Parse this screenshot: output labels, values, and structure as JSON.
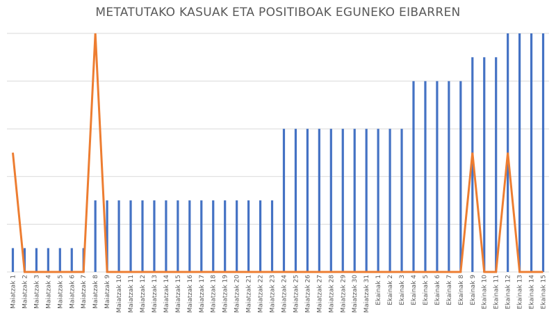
{
  "chart_data": {
    "type": "bar",
    "title": "METATUTAKO KASUAK ETA POSITIBOAK EGUNEKO EIBARREN",
    "xlabel": "",
    "ylabel": "",
    "ylim": [
      0,
      10
    ],
    "grid": true,
    "categories": [
      "Maiatzak 1",
      "Maiatzak 2",
      "Maiatzak 3",
      "Maiatzak 4",
      "Maiatzak 5",
      "Maiatzak 6",
      "Maiatzak 7",
      "Maiatzak 8",
      "Maiatzak 9",
      "Maiatzak 10",
      "Maiatzak 11",
      "Maiatzak 12",
      "Maiatzak 13",
      "Maiatzak 14",
      "Maiatzak 15",
      "Maiatzak 16",
      "Maiatzak 17",
      "Maiatzak 18",
      "Maiatzak 19",
      "Maiatzak 20",
      "Maiatzak 21",
      "Maiatzak 22",
      "Maiatzak 23",
      "Maiatzak 24",
      "Maiatzak 25",
      "Maiatzak 26",
      "Maiatzak 27",
      "Maiatzak 28",
      "Maiatzak 29",
      "Maiatzak 30",
      "Maiatzak 31",
      "Ekainak 1",
      "Ekainak 2",
      "Ekainak 3",
      "Ekainak 4",
      "Ekainak 5",
      "Ekainak 6",
      "Ekainak 7",
      "Ekainak 8",
      "Ekainak 9",
      "Ekainak 10",
      "Ekainak 11",
      "Ekainak 12",
      "Ekainak 13",
      "Ekainak 14",
      "Ekainak 15"
    ],
    "series": [
      {
        "type": "bar",
        "color": "#4472c4",
        "values": [
          1,
          1,
          1,
          1,
          1,
          1,
          1,
          3,
          3,
          3,
          3,
          3,
          3,
          3,
          3,
          3,
          3,
          3,
          3,
          3,
          3,
          3,
          3,
          6,
          6,
          6,
          6,
          6,
          6,
          6,
          6,
          6,
          6,
          6,
          8,
          8,
          8,
          8,
          8,
          9,
          9,
          9,
          10,
          10,
          10,
          10
        ]
      },
      {
        "type": "line",
        "color": "#ed7d31",
        "values": [
          5,
          0,
          0,
          0,
          0,
          0,
          0,
          10,
          0,
          0,
          0,
          0,
          0,
          0,
          0,
          0,
          0,
          0,
          0,
          0,
          0,
          0,
          0,
          0,
          0,
          0,
          0,
          0,
          0,
          0,
          0,
          0,
          0,
          0,
          0,
          0,
          0,
          0,
          0,
          5,
          0,
          0,
          5,
          0,
          0,
          0
        ]
      }
    ]
  }
}
